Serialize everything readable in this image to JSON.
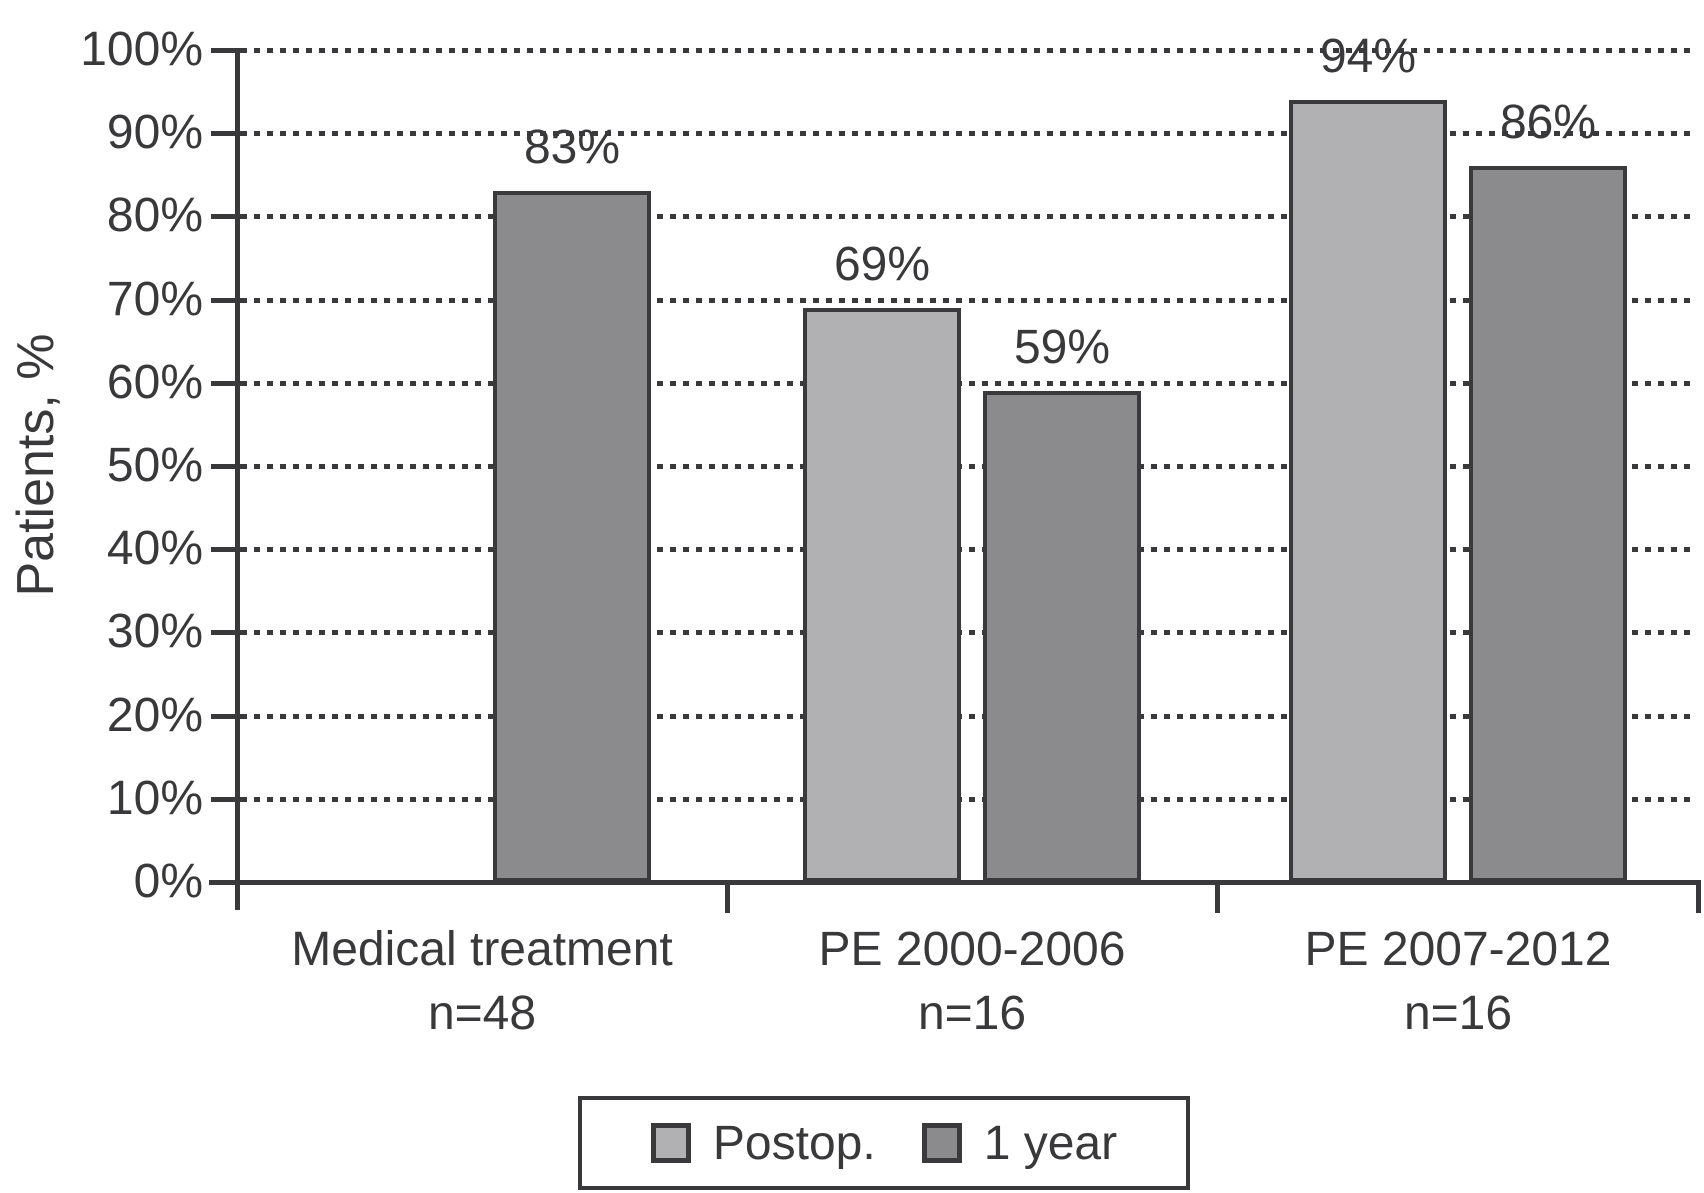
{
  "chart_data": {
    "type": "bar",
    "title": "",
    "ylabel": "Patients, %",
    "xlabel": "",
    "ylim": [
      0,
      100
    ],
    "ytick_step": 10,
    "ytick_labels": [
      "0%",
      "10%",
      "20%",
      "30%",
      "40%",
      "50%",
      "60%",
      "70%",
      "80%",
      "90%",
      "100%"
    ],
    "grid": "horizontal-dotted",
    "legend_position": "bottom",
    "categories": [
      {
        "label": "Medical treatment",
        "n": "n=48"
      },
      {
        "label": "PE 2000-2006",
        "n": "n=16"
      },
      {
        "label": "PE 2007-2012",
        "n": "n=16"
      }
    ],
    "series": [
      {
        "name": "Postop.",
        "color": "#b1b1b3",
        "values": [
          null,
          69,
          94
        ]
      },
      {
        "name": "1 year",
        "color": "#8b8b8d",
        "values": [
          83,
          59,
          86
        ]
      }
    ],
    "bar_labels": [
      [
        "",
        "69%",
        "94%"
      ],
      [
        "83%",
        "59%",
        "86%"
      ]
    ]
  },
  "colors": {
    "background": "#ffffff",
    "ink": "#39393b",
    "bar_border": "#3a3a3c",
    "postop_fill": "#b1b1b3",
    "one_year_fill": "#8b8b8d"
  }
}
